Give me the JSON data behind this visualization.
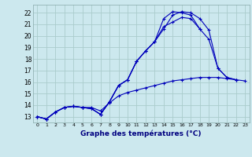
{
  "xlabel": "Graphe des températures (°C)",
  "bg_color": "#cce8ee",
  "grid_color": "#aacccc",
  "line_color": "#0000bb",
  "xlim": [
    -0.5,
    23.5
  ],
  "ylim": [
    12.5,
    22.7
  ],
  "xticks": [
    0,
    1,
    2,
    3,
    4,
    5,
    6,
    7,
    8,
    9,
    10,
    11,
    12,
    13,
    14,
    15,
    16,
    17,
    18,
    19,
    20,
    21,
    22,
    23
  ],
  "yticks": [
    13,
    14,
    15,
    16,
    17,
    18,
    19,
    20,
    21,
    22
  ],
  "series": [
    [
      13.0,
      12.8,
      13.4,
      13.8,
      13.9,
      13.8,
      13.8,
      13.5,
      14.2,
      14.8,
      15.1,
      15.3,
      15.5,
      15.7,
      15.9,
      16.1,
      16.2,
      16.3,
      16.4,
      16.4,
      16.4,
      16.3,
      16.2,
      16.1
    ],
    [
      13.0,
      12.8,
      13.4,
      13.8,
      13.9,
      13.8,
      13.7,
      13.2,
      14.3,
      15.7,
      16.2,
      17.8,
      18.7,
      19.5,
      20.6,
      21.8,
      22.1,
      22.0,
      21.5,
      20.5,
      17.2,
      16.4,
      16.2,
      null
    ],
    [
      13.0,
      12.8,
      13.4,
      13.8,
      13.9,
      13.8,
      13.7,
      13.2,
      14.3,
      15.7,
      16.2,
      17.8,
      18.7,
      19.5,
      20.8,
      21.2,
      21.6,
      21.5,
      20.6,
      19.7,
      17.2,
      16.4,
      16.2,
      null
    ],
    [
      13.0,
      12.8,
      13.4,
      13.8,
      13.9,
      13.8,
      13.7,
      13.2,
      14.3,
      15.7,
      16.2,
      17.8,
      18.7,
      19.5,
      21.5,
      22.1,
      22.0,
      21.8,
      20.6,
      null,
      null,
      null,
      null,
      null
    ]
  ]
}
